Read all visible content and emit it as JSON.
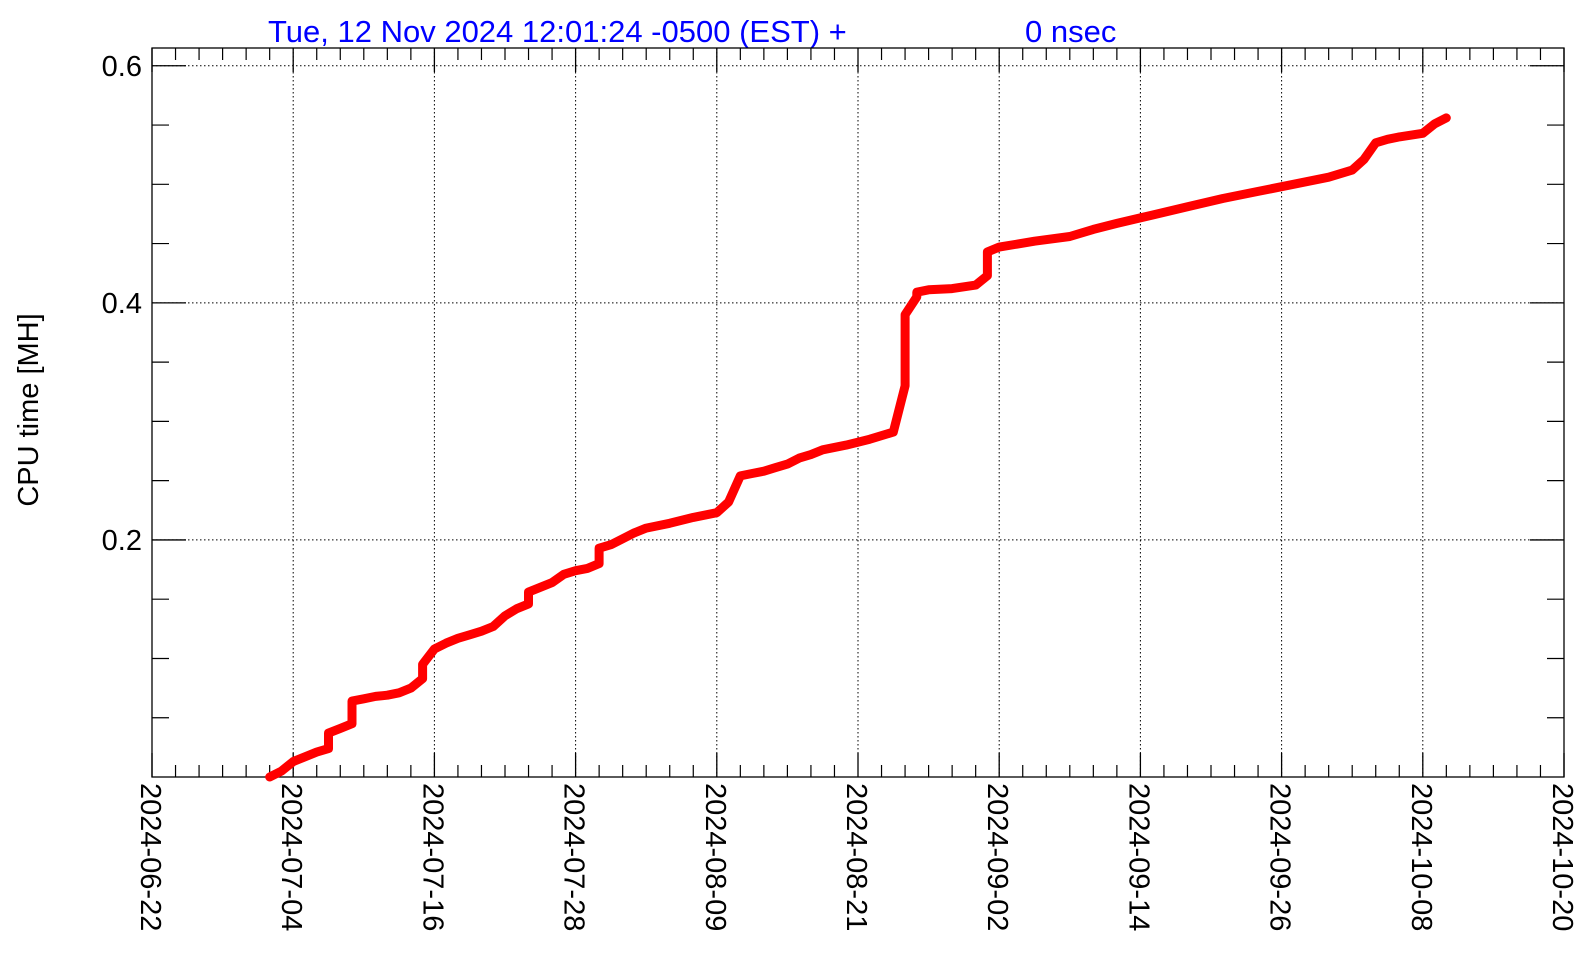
{
  "header": {
    "datetime": "Tue, 12 Nov 2024 12:01:24 -0500 (EST) +",
    "nsec": "0 nsec",
    "color": "#0000ff"
  },
  "chart_data": {
    "type": "line",
    "ylabel": "CPU time [MH]",
    "xlabel": "",
    "line_color": "#ff0000",
    "grid": true,
    "x_axis_type": "date",
    "xlim": [
      "2024-06-22",
      "2024-10-20"
    ],
    "ylim": [
      0,
      0.615
    ],
    "x_ticks": [
      "2024-06-22",
      "2024-07-04",
      "2024-07-16",
      "2024-07-28",
      "2024-08-09",
      "2024-08-21",
      "2024-09-02",
      "2024-09-14",
      "2024-09-26",
      "2024-10-08",
      "2024-10-20"
    ],
    "y_ticks": [
      {
        "value": 0.2,
        "label": "0.2"
      },
      {
        "value": 0.4,
        "label": "0.4"
      },
      {
        "value": 0.6,
        "label": "0.6"
      }
    ],
    "series": [
      {
        "x": [
          "2024-07-02",
          "2024-07-03",
          "2024-07-04",
          "2024-07-05",
          "2024-07-06",
          "2024-07-07",
          "2024-07-07",
          "2024-07-08",
          "2024-07-09",
          "2024-07-09",
          "2024-07-10",
          "2024-07-11",
          "2024-07-12",
          "2024-07-13",
          "2024-07-14",
          "2024-07-15",
          "2024-07-15",
          "2024-07-16",
          "2024-07-17",
          "2024-07-18",
          "2024-07-19",
          "2024-07-20",
          "2024-07-21",
          "2024-07-22",
          "2024-07-23",
          "2024-07-24",
          "2024-07-24",
          "2024-07-25",
          "2024-07-26",
          "2024-07-27",
          "2024-07-28",
          "2024-07-29",
          "2024-07-30",
          "2024-07-30",
          "2024-07-31",
          "2024-08-01",
          "2024-08-02",
          "2024-08-03",
          "2024-08-05",
          "2024-08-07",
          "2024-08-09",
          "2024-08-10",
          "2024-08-11",
          "2024-08-12",
          "2024-08-13",
          "2024-08-14",
          "2024-08-15",
          "2024-08-16",
          "2024-08-17",
          "2024-08-18",
          "2024-08-20",
          "2024-08-22",
          "2024-08-24",
          "2024-08-25",
          "2024-08-25",
          "2024-08-26",
          "2024-08-26",
          "2024-08-27",
          "2024-08-29",
          "2024-08-31",
          "2024-09-01",
          "2024-09-01",
          "2024-09-02",
          "2024-09-05",
          "2024-09-08",
          "2024-09-10",
          "2024-09-12",
          "2024-09-15",
          "2024-09-18",
          "2024-09-21",
          "2024-09-24",
          "2024-09-27",
          "2024-09-30",
          "2024-10-02",
          "2024-10-03",
          "2024-10-04",
          "2024-10-05",
          "2024-10-06",
          "2024-10-08",
          "2024-10-09",
          "2024-10-10"
        ],
        "y": [
          0.0,
          0.005,
          0.013,
          0.017,
          0.021,
          0.024,
          0.037,
          0.041,
          0.045,
          0.064,
          0.066,
          0.068,
          0.069,
          0.071,
          0.075,
          0.083,
          0.095,
          0.108,
          0.113,
          0.117,
          0.12,
          0.123,
          0.127,
          0.136,
          0.142,
          0.146,
          0.156,
          0.16,
          0.164,
          0.171,
          0.174,
          0.176,
          0.18,
          0.193,
          0.196,
          0.201,
          0.206,
          0.21,
          0.214,
          0.219,
          0.223,
          0.232,
          0.254,
          0.256,
          0.258,
          0.261,
          0.264,
          0.269,
          0.272,
          0.276,
          0.28,
          0.285,
          0.291,
          0.33,
          0.39,
          0.405,
          0.409,
          0.411,
          0.412,
          0.415,
          0.423,
          0.443,
          0.447,
          0.452,
          0.456,
          0.462,
          0.467,
          0.474,
          0.481,
          0.488,
          0.494,
          0.5,
          0.506,
          0.512,
          0.521,
          0.535,
          0.538,
          0.54,
          0.543,
          0.551,
          0.556
        ]
      }
    ]
  }
}
